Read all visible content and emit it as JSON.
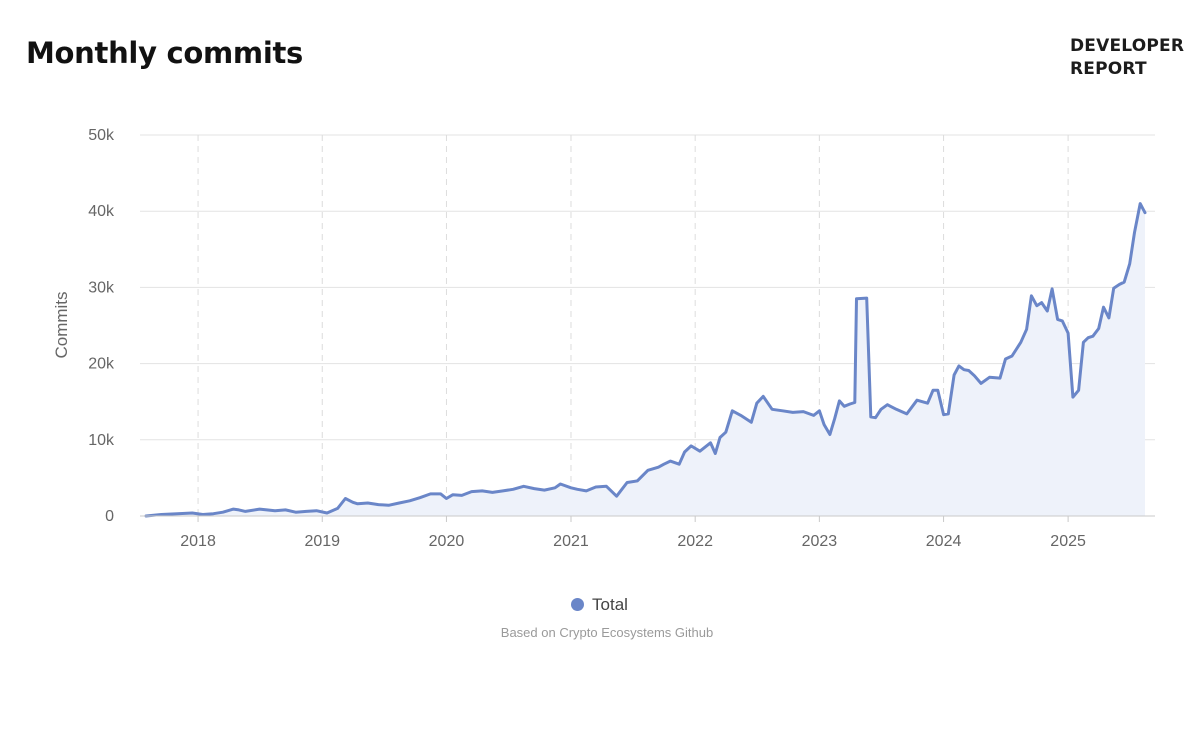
{
  "header": {
    "title": "Monthly commits",
    "brand_line1": "DEVELOPER",
    "brand_line2": "REPORT"
  },
  "legend": {
    "label": "Total"
  },
  "footer": {
    "source": "Based on Crypto Ecosystems Github"
  },
  "colors": {
    "series": "#6a86c8",
    "area": "#eef2fa",
    "grid": "#e3e3e3",
    "axis_text": "#666666"
  },
  "chart_data": {
    "type": "area",
    "title": "Monthly commits",
    "xlabel": "",
    "ylabel": "Commits",
    "ylim": [
      0,
      50000
    ],
    "xlim": [
      "2017-08-01",
      "2025-08-15"
    ],
    "grid": true,
    "legend_position": "bottom-center",
    "y_ticks": [
      "0",
      "10k",
      "20k",
      "30k",
      "40k",
      "50k"
    ],
    "y_tick_values": [
      0,
      10000,
      20000,
      30000,
      40000,
      50000
    ],
    "x_ticks": [
      "2018",
      "2019",
      "2020",
      "2021",
      "2022",
      "2023",
      "2024",
      "2025"
    ],
    "x_tick_values": [
      "2018-01-01",
      "2019-01-01",
      "2020-01-01",
      "2021-01-01",
      "2022-01-01",
      "2023-01-01",
      "2024-01-01",
      "2025-01-01"
    ],
    "series": [
      {
        "name": "Total",
        "x": [
          "2017-08-01",
          "2017-09-15",
          "2017-11-01",
          "2017-12-15",
          "2018-01-15",
          "2018-02-15",
          "2018-03-15",
          "2018-04-15",
          "2018-05-01",
          "2018-05-20",
          "2018-07-01",
          "2018-08-15",
          "2018-09-15",
          "2018-10-15",
          "2018-11-15",
          "2018-12-15",
          "2019-01-15",
          "2019-02-15",
          "2019-03-10",
          "2019-04-01",
          "2019-04-15",
          "2019-05-15",
          "2019-06-15",
          "2019-07-15",
          "2019-08-15",
          "2019-09-15",
          "2019-10-15",
          "2019-11-15",
          "2019-12-15",
          "2020-01-01",
          "2020-01-20",
          "2020-02-15",
          "2020-03-15",
          "2020-04-15",
          "2020-05-15",
          "2020-06-15",
          "2020-07-15",
          "2020-08-15",
          "2020-09-15",
          "2020-10-15",
          "2020-11-15",
          "2020-12-01",
          "2021-01-01",
          "2021-01-20",
          "2021-02-15",
          "2021-03-15",
          "2021-04-15",
          "2021-05-15",
          "2021-06-15",
          "2021-07-15",
          "2021-08-15",
          "2021-09-15",
          "2021-10-01",
          "2021-10-20",
          "2021-11-15",
          "2021-12-01",
          "2021-12-20",
          "2022-01-15",
          "2022-02-15",
          "2022-03-01",
          "2022-03-15",
          "2022-04-01",
          "2022-04-20",
          "2022-05-15",
          "2022-06-15",
          "2022-07-01",
          "2022-07-20",
          "2022-08-15",
          "2022-09-15",
          "2022-10-15",
          "2022-11-15",
          "2022-12-15",
          "2023-01-01",
          "2023-01-15",
          "2023-02-01",
          "2023-02-15",
          "2023-03-01",
          "2023-03-15",
          "2023-04-01",
          "2023-04-15",
          "2023-04-20",
          "2023-05-20",
          "2023-06-01",
          "2023-06-15",
          "2023-07-01",
          "2023-07-20",
          "2023-08-15",
          "2023-09-15",
          "2023-10-15",
          "2023-11-15",
          "2023-12-01",
          "2023-12-15",
          "2024-01-01",
          "2024-01-15",
          "2024-02-01",
          "2024-02-15",
          "2024-03-01",
          "2024-03-15",
          "2024-04-01",
          "2024-04-20",
          "2024-05-15",
          "2024-06-15",
          "2024-07-01",
          "2024-07-20",
          "2024-08-15",
          "2024-09-01",
          "2024-09-15",
          "2024-10-01",
          "2024-10-15",
          "2024-11-01",
          "2024-11-15",
          "2024-12-01",
          "2024-12-15",
          "2025-01-01",
          "2025-01-15",
          "2025-02-01",
          "2025-02-15",
          "2025-03-01",
          "2025-03-15",
          "2025-04-01",
          "2025-04-15",
          "2025-05-01",
          "2025-05-15",
          "2025-06-01",
          "2025-06-15",
          "2025-07-01",
          "2025-07-15",
          "2025-08-01",
          "2025-08-15"
        ],
        "values": [
          0,
          200,
          300,
          400,
          200,
          300,
          500,
          900,
          800,
          600,
          900,
          700,
          800,
          500,
          600,
          700,
          400,
          1000,
          2300,
          1800,
          1600,
          1700,
          1500,
          1400,
          1700,
          2000,
          2400,
          2900,
          2900,
          2300,
          2800,
          2700,
          3200,
          3300,
          3100,
          3300,
          3500,
          3900,
          3600,
          3400,
          3700,
          4200,
          3700,
          3500,
          3300,
          3800,
          3900,
          2600,
          4400,
          4600,
          6000,
          6400,
          6800,
          7200,
          6800,
          8400,
          9200,
          8500,
          9600,
          8200,
          10300,
          11000,
          13800,
          13200,
          12300,
          14800,
          15700,
          14000,
          13800,
          13600,
          13700,
          13200,
          13800,
          12000,
          10700,
          12800,
          15100,
          14400,
          14700,
          14900,
          28500,
          28600,
          13000,
          12900,
          14000,
          14600,
          14000,
          13400,
          15200,
          14800,
          16500,
          16500,
          13300,
          13400,
          18500,
          19700,
          19200,
          19100,
          18400,
          17400,
          18200,
          18100,
          20600,
          21000,
          22800,
          24500,
          28900,
          27600,
          28000,
          26900,
          29800,
          25800,
          25600,
          24000,
          15600,
          16500,
          22800,
          23400,
          23600,
          24600,
          27400,
          26000,
          29900,
          30400,
          30700,
          33100,
          37200,
          41000,
          39800
        ]
      }
    ]
  }
}
